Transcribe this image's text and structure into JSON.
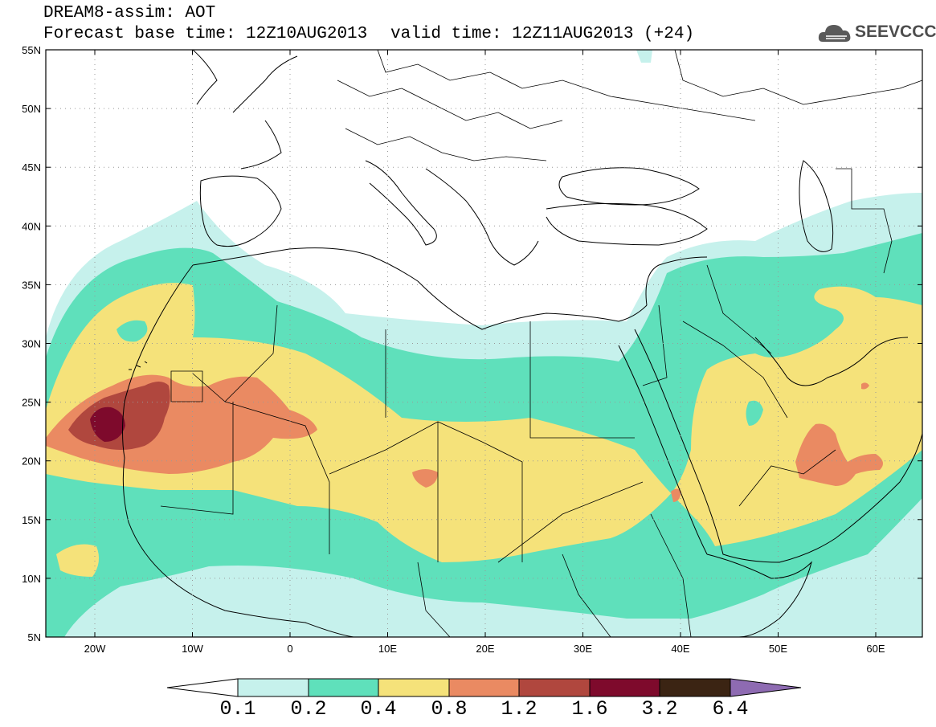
{
  "header": {
    "title": "DREAM8-assim: AOT",
    "base_time": "Forecast base time: 12Z10AUG2013",
    "valid_time": "valid time: 12Z11AUG2013 (+24)"
  },
  "logo": {
    "text": "SEEVCCC",
    "icon": "cloud-icon"
  },
  "axes": {
    "lat_labels": [
      "55N",
      "50N",
      "45N",
      "40N",
      "35N",
      "30N",
      "25N",
      "20N",
      "15N",
      "10N",
      "5N"
    ],
    "lon_labels": [
      "20W",
      "10W",
      "0",
      "10E",
      "20E",
      "30E",
      "40E",
      "50E",
      "60E"
    ],
    "grid": "dotted"
  },
  "colorbar": {
    "ticks": [
      "0.1",
      "0.2",
      "0.4",
      "0.8",
      "1.2",
      "1.6",
      "3.2",
      "6.4"
    ],
    "colors": [
      "#ffffff",
      "#c6f1ec",
      "#5fe0bb",
      "#f5e27a",
      "#ea8a62",
      "#b0473e",
      "#7e0a2c",
      "#3b2413",
      "#8e6bb2"
    ]
  }
}
